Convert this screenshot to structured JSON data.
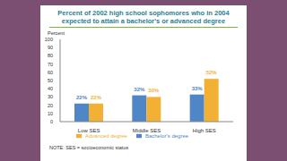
{
  "chart_data": {
    "type": "bar",
    "title": "Percent of 2002 high school sophomores who in 2004 expected to attain a bachelor's or advanced degree",
    "y_label": "Percent",
    "note": "NOTE: SES = socioeconomic status",
    "categories": [
      "Low SES",
      "Middle SES",
      "High SES"
    ],
    "series": [
      {
        "name": "Bachelor's degree",
        "color": "#4f86c6",
        "values": [
          22,
          32,
          33
        ],
        "value_labels": [
          "22%",
          "32%",
          "33%"
        ]
      },
      {
        "name": "Advanced degree",
        "color": "#f2b134",
        "values": [
          22,
          30,
          52
        ],
        "value_labels": [
          "22%",
          "30%",
          "52%"
        ]
      }
    ],
    "ylim": [
      0,
      100
    ],
    "yticks": [
      0,
      10,
      20,
      30,
      40,
      50,
      60,
      70,
      80,
      90,
      100
    ],
    "grid": false,
    "legend": "bottom",
    "data_labels": true
  }
}
